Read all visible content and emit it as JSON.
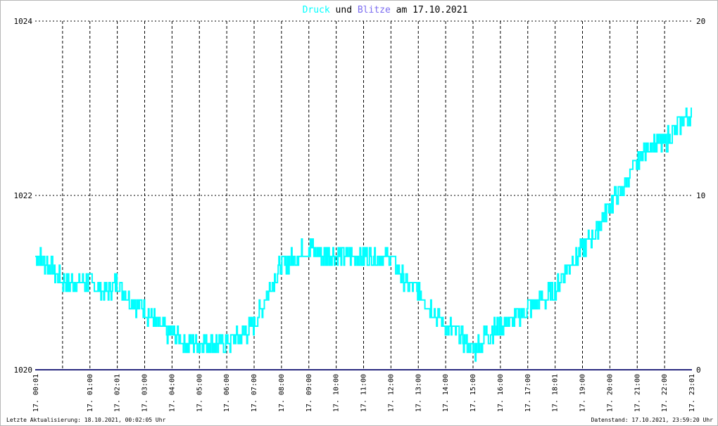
{
  "title": {
    "part1": "Druck",
    "part2": "und",
    "part3": "Blitze",
    "part4": "am 17.10.2021",
    "color1": "#00ffff",
    "color3": "#7b6cf0"
  },
  "footer": {
    "left": "Letzte Aktualisierung: 18.10.2021, 00:02:05 Uhr",
    "right": "Datenstand: 17.10.2021, 23:59:20 Uhr"
  },
  "chart_data": {
    "type": "line",
    "title": "Druck und Blitze am 17.10.2021",
    "x_tick_labels": [
      "17. 00:01",
      "17. 01:00",
      "17. 02:01",
      "17. 03:00",
      "17. 04:00",
      "17. 05:00",
      "17. 06:00",
      "17. 07:00",
      "17. 08:00",
      "17. 09:00",
      "17. 10:00",
      "17. 11:00",
      "17. 12:00",
      "17. 13:00",
      "17. 14:00",
      "17. 15:00",
      "17. 16:00",
      "17. 17:00",
      "17. 18:01",
      "17. 19:00",
      "17. 20:00",
      "17. 21:00",
      "17. 22:00",
      "17. 23:01"
    ],
    "y_left": {
      "ticks": [
        "1020",
        "1022",
        "1024"
      ],
      "range": [
        1020,
        1024
      ]
    },
    "y_right": {
      "ticks": [
        "0",
        "10",
        "20"
      ],
      "range": [
        0,
        20
      ]
    },
    "grid": true,
    "colors": {
      "druck": "#00ffff",
      "blitze": "#2b2b80"
    },
    "series": [
      {
        "name": "Druck",
        "axis": "left",
        "x_hours": [
          0,
          0.5,
          1,
          1.5,
          2,
          2.5,
          3,
          3.5,
          4,
          4.5,
          5,
          5.5,
          6,
          6.5,
          7,
          7.5,
          8,
          8.5,
          9,
          9.5,
          10,
          10.5,
          11,
          11.5,
          12,
          12.5,
          13,
          13.5,
          14,
          14.5,
          15,
          15.5,
          16,
          16.5,
          17,
          17.5,
          18,
          18.5,
          19,
          19.5,
          20,
          20.5,
          21,
          21.5,
          22,
          22.5,
          23,
          23.5,
          24
        ],
        "values": [
          1021.3,
          1021.2,
          1021.0,
          1021.0,
          1021.0,
          1020.9,
          1021.0,
          1020.8,
          1020.7,
          1020.5,
          1020.4,
          1020.3,
          1020.3,
          1020.3,
          1020.3,
          1020.4,
          1020.5,
          1020.9,
          1021.2,
          1021.3,
          1021.4,
          1021.3,
          1021.3,
          1021.3,
          1021.3,
          1021.3,
          1021.3,
          1021.0,
          1020.9,
          1020.7,
          1020.5,
          1020.4,
          1020.2,
          1020.4,
          1020.5,
          1020.6,
          1020.7,
          1020.8,
          1020.9,
          1021.2,
          1021.4,
          1021.6,
          1021.9,
          1022.1,
          1022.4,
          1022.6,
          1022.6,
          1022.8,
          1022.9
        ]
      },
      {
        "name": "Blitze",
        "axis": "right",
        "x_hours": [
          0,
          24
        ],
        "values": [
          0,
          0
        ]
      }
    ]
  }
}
